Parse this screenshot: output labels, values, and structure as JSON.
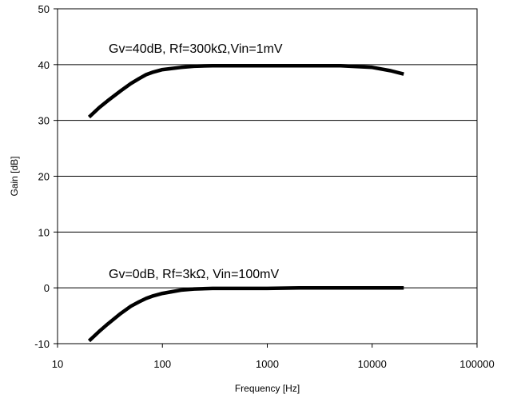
{
  "chart_data": {
    "type": "line",
    "xlabel": "Frequency [Hz]",
    "ylabel": "Gain [dB]",
    "xscale": "log",
    "xlim": [
      10,
      100000
    ],
    "ylim": [
      -10,
      50
    ],
    "xticks": [
      "10",
      "100",
      "1000",
      "10000",
      "100000"
    ],
    "yticks": [
      "-10",
      "0",
      "10",
      "20",
      "30",
      "40",
      "50"
    ],
    "grid": "horizontal",
    "line_color": "#000000",
    "series": [
      {
        "label": "Gv=40dB, Rf=300kΩ,Vin=1mV",
        "x": [
          20,
          25,
          30,
          40,
          50,
          60,
          70,
          80,
          100,
          150,
          200,
          300,
          500,
          1000,
          2000,
          5000,
          10000,
          15000,
          20000
        ],
        "y": [
          30.6,
          32.3,
          33.5,
          35.3,
          36.6,
          37.5,
          38.2,
          38.6,
          39.1,
          39.5,
          39.7,
          39.8,
          39.8,
          39.8,
          39.8,
          39.8,
          39.5,
          38.9,
          38.3
        ]
      },
      {
        "label": "Gv=0dB, Rf=3kΩ, Vin=100mV",
        "x": [
          20,
          25,
          30,
          40,
          50,
          60,
          70,
          80,
          100,
          150,
          200,
          300,
          500,
          1000,
          2000,
          5000,
          10000,
          20000
        ],
        "y": [
          -9.5,
          -7.8,
          -6.5,
          -4.6,
          -3.3,
          -2.5,
          -1.9,
          -1.5,
          -1.0,
          -0.4,
          -0.2,
          -0.1,
          -0.1,
          -0.1,
          0.0,
          0.0,
          0.0,
          0.0
        ]
      }
    ]
  }
}
